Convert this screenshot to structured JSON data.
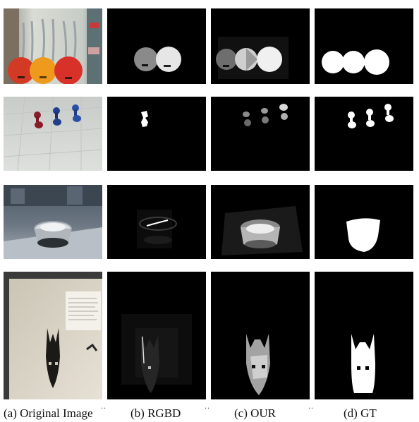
{
  "columns": [
    {
      "id": "a",
      "label": "(a) Original Image"
    },
    {
      "id": "b",
      "label": "(b) RGBD"
    },
    {
      "id": "c",
      "label": "(c) OUR"
    },
    {
      "id": "d",
      "label": "(d) GT"
    }
  ],
  "rows": [
    {
      "id": "row-1",
      "subject": "three round pans"
    },
    {
      "id": "row-2",
      "subject": "three dumbbells"
    },
    {
      "id": "row-3",
      "subject": "metal pot"
    },
    {
      "id": "row-4",
      "subject": "mask"
    }
  ],
  "colors": {
    "background": "#ffffff",
    "map_background": "#000000",
    "mask": "#ffffff"
  }
}
